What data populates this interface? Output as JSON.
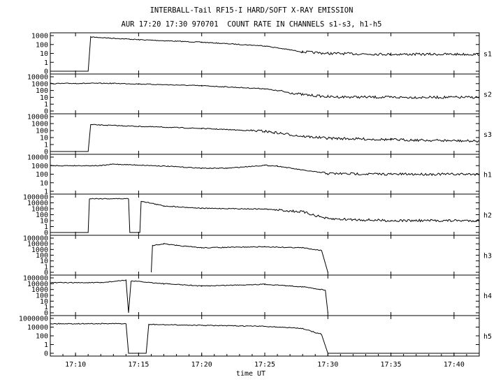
{
  "chart_data": {
    "type": "line",
    "title": "INTERBALL-Tail RF15-I HARD/SOFT X-RAY EMISSION",
    "subtitle": "AUR 17:20 17:30 970701  COUNT RATE IN CHANNELS s1-s3, h1-h5",
    "xlabel": "time UT",
    "x_ticks": [
      "17:10",
      "17:15",
      "17:20",
      "17:25",
      "17:30",
      "17:35",
      "17:40"
    ],
    "xlim": [
      "17:08",
      "17:42"
    ],
    "grid": false,
    "panels": [
      {
        "name": "s1",
        "yscale": "log",
        "yticks": [
          "1000",
          "100",
          "10",
          "1",
          "0"
        ],
        "series": [
          {
            "x": [
              "17:08",
              "17:11",
              "17:11.2",
              "17:15",
              "17:20",
              "17:25",
              "17:28",
              "17:30",
              "17:35",
              "17:42"
            ],
            "y": [
              0,
              0,
              700,
              350,
              180,
              70,
              15,
              10,
              8,
              8
            ]
          }
        ]
      },
      {
        "name": "s2",
        "yscale": "log",
        "yticks": [
          "10000",
          "1000",
          "100",
          "10",
          "1",
          "0"
        ],
        "series": [
          {
            "x": [
              "17:08",
              "17:10",
              "17:13",
              "17:15",
              "17:20",
              "17:25",
              "17:28",
              "17:30",
              "17:35",
              "17:42"
            ],
            "y": [
              1000,
              1100,
              1100,
              900,
              500,
              180,
              25,
              12,
              10,
              10
            ]
          }
        ]
      },
      {
        "name": "s3",
        "yscale": "log",
        "yticks": [
          "10000",
          "1000",
          "100",
          "10",
          "1",
          "0"
        ],
        "series": [
          {
            "x": [
              "17:08",
              "17:11",
              "17:11.2",
              "17:15",
              "17:20",
              "17:25",
              "17:28",
              "17:30",
              "17:35",
              "17:42"
            ],
            "y": [
              0,
              0,
              700,
              400,
              200,
              80,
              15,
              8,
              5,
              3
            ]
          }
        ]
      },
      {
        "name": "h1",
        "yscale": "log",
        "yticks": [
          "10000",
          "1000",
          "100",
          "10",
          "1"
        ],
        "series": [
          {
            "x": [
              "17:08",
              "17:12",
              "17:13",
              "17:17",
              "17:20",
              "17:22",
              "17:25",
              "17:26",
              "17:28",
              "17:30",
              "17:35",
              "17:42"
            ],
            "y": [
              1000,
              1000,
              1500,
              900,
              500,
              500,
              1100,
              900,
              300,
              120,
              100,
              100
            ]
          }
        ]
      },
      {
        "name": "h2",
        "yscale": "log",
        "yticks": [
          "100000",
          "10000",
          "1000",
          "100",
          "10",
          "1",
          "0"
        ],
        "series": [
          {
            "x": [
              "17:08",
              "17:11",
              "17:11.1",
              "17:14.2",
              "17:14.3",
              "17:15.1",
              "17:15.2",
              "17:17",
              "17:20",
              "17:25",
              "17:28",
              "17:30",
              "17:35",
              "17:42"
            ],
            "y": [
              0,
              0,
              50000,
              50000,
              0,
              0,
              20000,
              3000,
              1200,
              900,
              300,
              20,
              10,
              10
            ]
          }
        ]
      },
      {
        "name": "h3",
        "yscale": "log",
        "yticks": [
          "100000",
          "10000",
          "1000",
          "100",
          "10",
          "1",
          "0"
        ],
        "series": [
          {
            "x": [
              "17:16",
              "17:16.1",
              "17:17",
              "17:18",
              "17:20",
              "17:25",
              "17:28",
              "17:29.5",
              "17:30"
            ],
            "y": [
              0,
              5000,
              10000,
              5000,
              2000,
              3000,
              2000,
              700,
              0
            ]
          }
        ]
      },
      {
        "name": "h4",
        "yscale": "log",
        "yticks": [
          "100000",
          "10000",
          "1000",
          "100",
          "10",
          "1",
          "0"
        ],
        "series": [
          {
            "x": [
              "17:08",
              "17:12",
              "17:14",
              "17:14.2",
              "17:14.4",
              "17:17",
              "17:20",
              "17:25",
              "17:28",
              "17:29.8",
              "17:30"
            ],
            "y": [
              15000,
              15000,
              40000,
              0,
              30000,
              10000,
              4000,
              8000,
              3000,
              800,
              0
            ]
          }
        ]
      },
      {
        "name": "h5",
        "yscale": "log",
        "yticks": [
          "1000000",
          "10000",
          "100",
          "1",
          "0"
        ],
        "series": [
          {
            "x": [
              "17:08",
              "17:14",
              "17:14.2",
              "17:15.6",
              "17:15.8",
              "17:20",
              "17:25",
              "17:28",
              "17:29.5",
              "17:30",
              "17:35",
              "17:42"
            ],
            "y": [
              60000,
              60000,
              0,
              0,
              40000,
              25000,
              15000,
              5000,
              200,
              0,
              0,
              0
            ]
          }
        ]
      }
    ]
  }
}
